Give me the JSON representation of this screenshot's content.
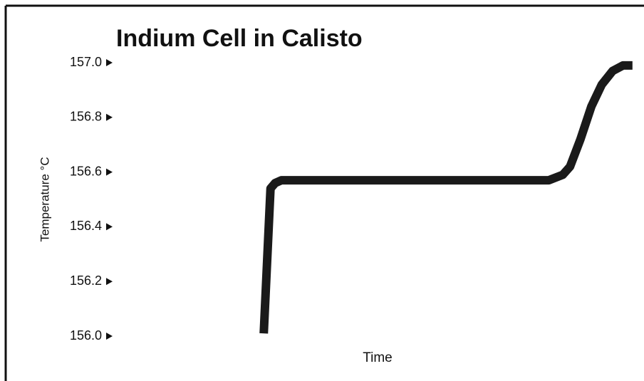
{
  "chart_data": {
    "type": "line",
    "title": "Indium Cell in Calisto",
    "xlabel": "Time",
    "ylabel": "Temperature °C",
    "x": [
      28.8,
      30.1,
      31.0,
      32.2,
      50.0,
      70.0,
      83.6,
      86.3,
      87.7,
      89.7,
      91.8,
      93.8,
      95.9,
      97.9,
      99.7
    ],
    "series": [
      {
        "name": "Temperature",
        "color": "#1a1a1a",
        "values": [
          156.01,
          156.54,
          156.56,
          156.57,
          156.57,
          156.57,
          156.57,
          156.59,
          156.62,
          156.72,
          156.84,
          156.92,
          156.97,
          156.99,
          156.99
        ]
      }
    ],
    "xlim": [
      0,
      100
    ],
    "ylim": [
      156.0,
      157.0
    ],
    "yticks": [
      {
        "value": 156.0,
        "label": "156.0"
      },
      {
        "value": 156.2,
        "label": "156.2"
      },
      {
        "value": 156.4,
        "label": "156.4"
      },
      {
        "value": 156.6,
        "label": "156.6"
      },
      {
        "value": 156.8,
        "label": "156.8"
      },
      {
        "value": 157.0,
        "label": "157.0"
      }
    ],
    "grid": false
  }
}
